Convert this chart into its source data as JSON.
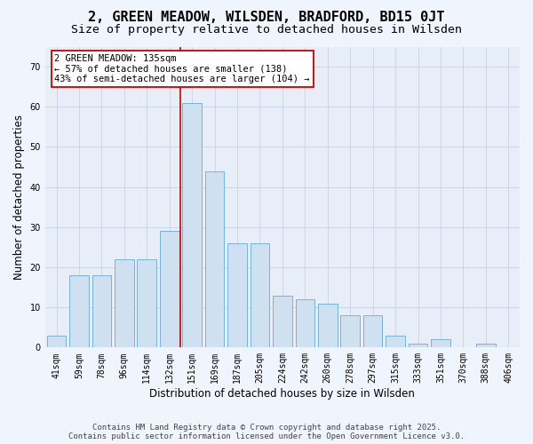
{
  "title": "2, GREEN MEADOW, WILSDEN, BRADFORD, BD15 0JT",
  "subtitle": "Size of property relative to detached houses in Wilsden",
  "xlabel": "Distribution of detached houses by size in Wilsden",
  "ylabel": "Number of detached properties",
  "categories": [
    "41sqm",
    "59sqm",
    "78sqm",
    "96sqm",
    "114sqm",
    "132sqm",
    "151sqm",
    "169sqm",
    "187sqm",
    "205sqm",
    "224sqm",
    "242sqm",
    "260sqm",
    "278sqm",
    "297sqm",
    "315sqm",
    "333sqm",
    "351sqm",
    "370sqm",
    "388sqm",
    "406sqm"
  ],
  "values": [
    3,
    18,
    18,
    22,
    22,
    29,
    61,
    44,
    26,
    26,
    13,
    12,
    11,
    8,
    8,
    3,
    1,
    2,
    0,
    1,
    0
  ],
  "bar_color": "#cfe0f0",
  "bar_edge_color": "#6aaad4",
  "vline_index": 6,
  "vline_color": "#cc0000",
  "annotation_text": "2 GREEN MEADOW: 135sqm\n← 57% of detached houses are smaller (138)\n43% of semi-detached houses are larger (104) →",
  "annotation_box_color": "#ffffff",
  "annotation_box_edge": "#cc0000",
  "ylim": [
    0,
    75
  ],
  "yticks": [
    0,
    10,
    20,
    30,
    40,
    50,
    60,
    70
  ],
  "grid_color": "#ccd6e8",
  "background_color": "#e8eef8",
  "fig_background": "#f0f4fc",
  "footer_line1": "Contains HM Land Registry data © Crown copyright and database right 2025.",
  "footer_line2": "Contains public sector information licensed under the Open Government Licence v3.0.",
  "title_fontsize": 11,
  "subtitle_fontsize": 9.5,
  "xlabel_fontsize": 8.5,
  "ylabel_fontsize": 8.5,
  "tick_fontsize": 7,
  "footer_fontsize": 6.5,
  "annotation_fontsize": 7.5
}
